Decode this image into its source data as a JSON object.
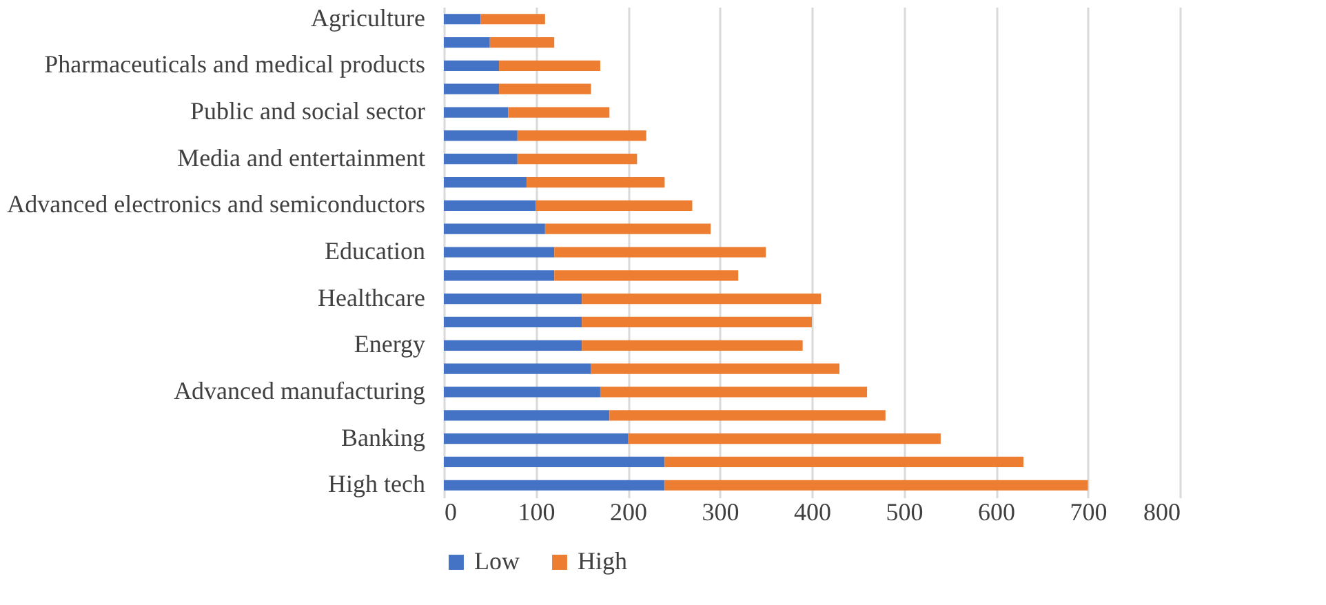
{
  "chart_data": {
    "type": "bar",
    "orientation": "horizontal",
    "stacked": true,
    "categories": [
      "Agriculture",
      null,
      "Pharmaceuticals and medical products",
      null,
      "Public and social sector",
      null,
      "Media and entertainment",
      null,
      "Advanced electronics and semiconductors",
      null,
      "Education",
      null,
      "Healthcare",
      null,
      "Energy",
      null,
      "Advanced manufacturing",
      null,
      "Banking",
      null,
      "High tech"
    ],
    "series": [
      {
        "name": "Low",
        "color": "#4472c4",
        "values": [
          40,
          50,
          60,
          60,
          70,
          80,
          80,
          90,
          100,
          110,
          120,
          120,
          150,
          150,
          150,
          160,
          170,
          180,
          200,
          240,
          240
        ]
      },
      {
        "name": "High",
        "color": "#ed7d31",
        "values": [
          70,
          70,
          110,
          100,
          110,
          140,
          130,
          150,
          170,
          180,
          230,
          200,
          260,
          250,
          240,
          270,
          290,
          300,
          340,
          390,
          460
        ]
      }
    ],
    "xlim": [
      0,
      800
    ],
    "xticks": [
      0,
      100,
      200,
      300,
      400,
      500,
      600,
      700,
      800
    ],
    "grid": "x",
    "legend": "bottom"
  }
}
